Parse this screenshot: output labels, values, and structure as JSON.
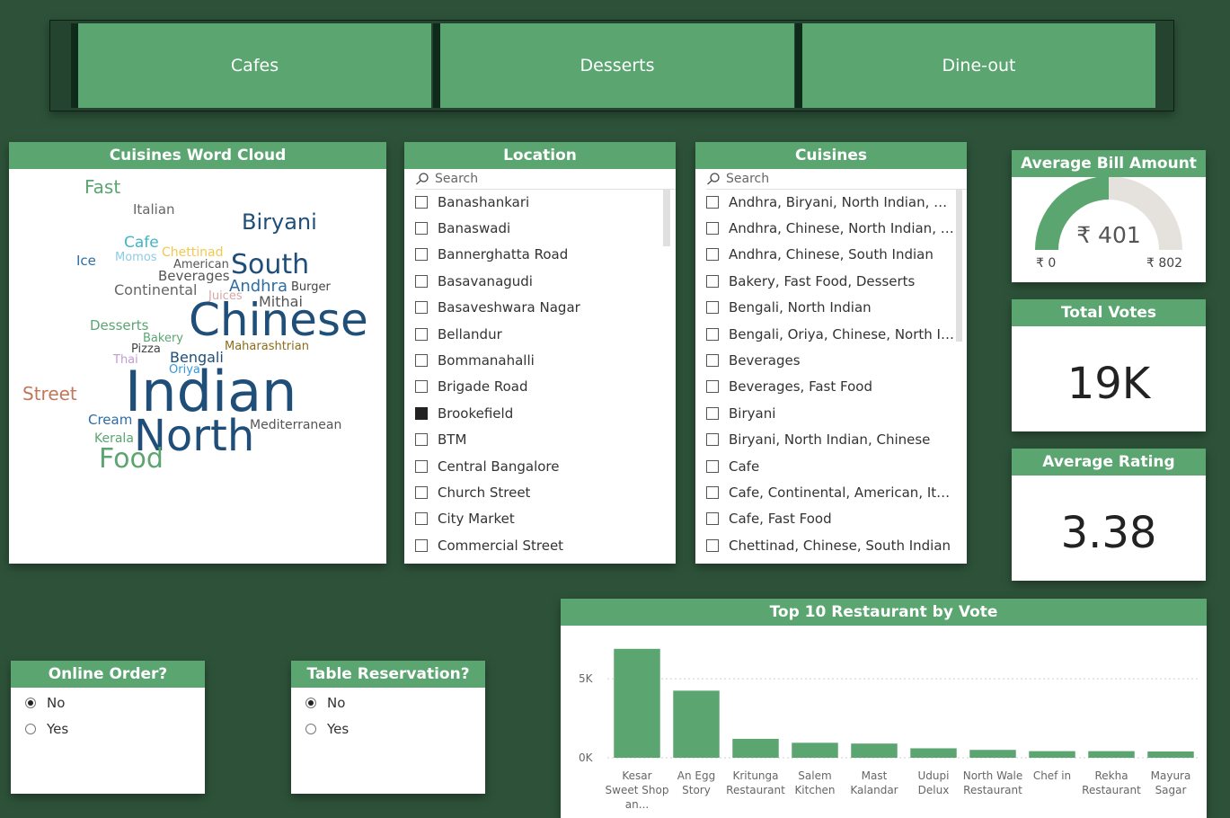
{
  "tabs": [
    "Cafes",
    "Desserts",
    "Dine-out"
  ],
  "word_cloud": {
    "title": "Cuisines Word Cloud",
    "words": [
      {
        "text": "Fast",
        "color": "#5ba571"
      },
      {
        "text": "Italian",
        "color": "#666666"
      },
      {
        "text": "Biryani",
        "color": "#1f4e79"
      },
      {
        "text": "Cafe",
        "color": "#41b6c4"
      },
      {
        "text": "Chettinad",
        "color": "#f2c94c"
      },
      {
        "text": "Ice",
        "color": "#2e6da4"
      },
      {
        "text": "Momos",
        "color": "#8ecae6"
      },
      {
        "text": "American",
        "color": "#555555"
      },
      {
        "text": "South",
        "color": "#1f4e79"
      },
      {
        "text": "Beverages",
        "color": "#555555"
      },
      {
        "text": "Continental",
        "color": "#666666"
      },
      {
        "text": "Andhra",
        "color": "#2e6da4"
      },
      {
        "text": "Burger",
        "color": "#444444"
      },
      {
        "text": "Juices",
        "color": "#d7a6a6"
      },
      {
        "text": "Mithai",
        "color": "#555555"
      },
      {
        "text": "Chinese",
        "color": "#1f4e79"
      },
      {
        "text": "Desserts",
        "color": "#5ba571"
      },
      {
        "text": "Bakery",
        "color": "#5ba571"
      },
      {
        "text": "Maharashtrian",
        "color": "#8a6d1a"
      },
      {
        "text": "Pizza",
        "color": "#444444"
      },
      {
        "text": "Bengali",
        "color": "#1f4e79"
      },
      {
        "text": "Thai",
        "color": "#c39bd3"
      },
      {
        "text": "Oriya",
        "color": "#3498db"
      },
      {
        "text": "Street",
        "color": "#c0785a"
      },
      {
        "text": "Indian",
        "color": "#1f4e79"
      },
      {
        "text": "Cream",
        "color": "#2e6da4"
      },
      {
        "text": "Kerala",
        "color": "#5ba571"
      },
      {
        "text": "North",
        "color": "#1f4e79"
      },
      {
        "text": "Mediterranean",
        "color": "#555555"
      },
      {
        "text": "Food",
        "color": "#5ba571"
      }
    ]
  },
  "location": {
    "title": "Location",
    "search_placeholder": "Search",
    "items": [
      {
        "label": "Banashankari",
        "checked": false
      },
      {
        "label": "Banaswadi",
        "checked": false
      },
      {
        "label": "Bannerghatta Road",
        "checked": false
      },
      {
        "label": "Basavanagudi",
        "checked": false
      },
      {
        "label": "Basaveshwara Nagar",
        "checked": false
      },
      {
        "label": "Bellandur",
        "checked": false
      },
      {
        "label": "Bommanahalli",
        "checked": false
      },
      {
        "label": "Brigade Road",
        "checked": false
      },
      {
        "label": "Brookefield",
        "checked": true
      },
      {
        "label": "BTM",
        "checked": false
      },
      {
        "label": "Central Bangalore",
        "checked": false
      },
      {
        "label": "Church Street",
        "checked": false
      },
      {
        "label": "City Market",
        "checked": false
      },
      {
        "label": "Commercial Street",
        "checked": false
      }
    ]
  },
  "cuisines": {
    "title": "Cuisines",
    "search_placeholder": "Search",
    "items": [
      {
        "label": "Andhra, Biryani, North Indian, Chin...",
        "checked": false
      },
      {
        "label": "Andhra, Chinese, North Indian, Bir...",
        "checked": false
      },
      {
        "label": "Andhra, Chinese, South Indian",
        "checked": false
      },
      {
        "label": "Bakery, Fast Food, Desserts",
        "checked": false
      },
      {
        "label": "Bengali, North Indian",
        "checked": false
      },
      {
        "label": "Bengali, Oriya, Chinese, North Indi...",
        "checked": false
      },
      {
        "label": "Beverages",
        "checked": false
      },
      {
        "label": "Beverages, Fast Food",
        "checked": false
      },
      {
        "label": "Biryani",
        "checked": false
      },
      {
        "label": "Biryani, North Indian, Chinese",
        "checked": false
      },
      {
        "label": "Cafe",
        "checked": false
      },
      {
        "label": "Cafe, Continental, American, Italian",
        "checked": false
      },
      {
        "label": "Cafe, Fast Food",
        "checked": false
      },
      {
        "label": "Chettinad, Chinese, South Indian",
        "checked": false
      }
    ]
  },
  "avg_bill": {
    "title": "Average Bill Amount",
    "value_label": "₹ 401",
    "min_label": "₹ 0",
    "max_label": "₹ 802",
    "value": 401,
    "min": 0,
    "max": 802,
    "fill_color": "#5ba571",
    "track_color": "#e5e1dc"
  },
  "total_votes": {
    "title": "Total Votes",
    "value": "19K"
  },
  "avg_rating": {
    "title": "Average Rating",
    "value": "3.38"
  },
  "online_order": {
    "title": "Online Order?",
    "options": [
      {
        "label": "No",
        "selected": true
      },
      {
        "label": "Yes",
        "selected": false
      }
    ]
  },
  "table_reservation": {
    "title": "Table Reservation?",
    "options": [
      {
        "label": "No",
        "selected": true
      },
      {
        "label": "Yes",
        "selected": false
      }
    ]
  },
  "chart_data": {
    "type": "bar",
    "title": "Top 10 Restaurant by Vote",
    "categories": [
      "Kesar Sweet Shop an...",
      "An Egg Story",
      "Kritunga Restaurant",
      "Salem Kitchen",
      "Mast Kalandar",
      "Udupi Delux",
      "North Wale Restaurant",
      "Chef in",
      "Rekha Restaurant",
      "Mayura Sagar"
    ],
    "values": [
      6900,
      4250,
      1200,
      950,
      900,
      600,
      500,
      420,
      420,
      400
    ],
    "y_ticks": [
      {
        "value": 0,
        "label": "0K"
      },
      {
        "value": 5000,
        "label": "5K"
      }
    ],
    "ylim": [
      0,
      7800
    ],
    "color": "#5ba571",
    "grid": true
  }
}
